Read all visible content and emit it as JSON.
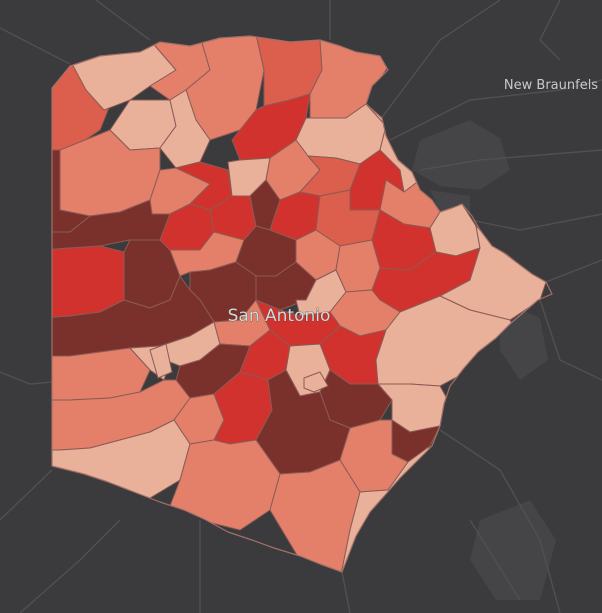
{
  "map": {
    "labels": {
      "main_city": "San Antonio",
      "neighbor_city": "New Braunfels"
    },
    "colors": {
      "basemap": "#3b3b3d",
      "roads": "#4d4d50",
      "urban_patches": "#474749",
      "zone_borders": "#8a5b55",
      "county_outline": "#9a9a9a",
      "choropleth_scale": [
        "#e9b09a",
        "#e4806a",
        "#dc5e4c",
        "#d2322e",
        "#7a312c"
      ]
    }
  }
}
